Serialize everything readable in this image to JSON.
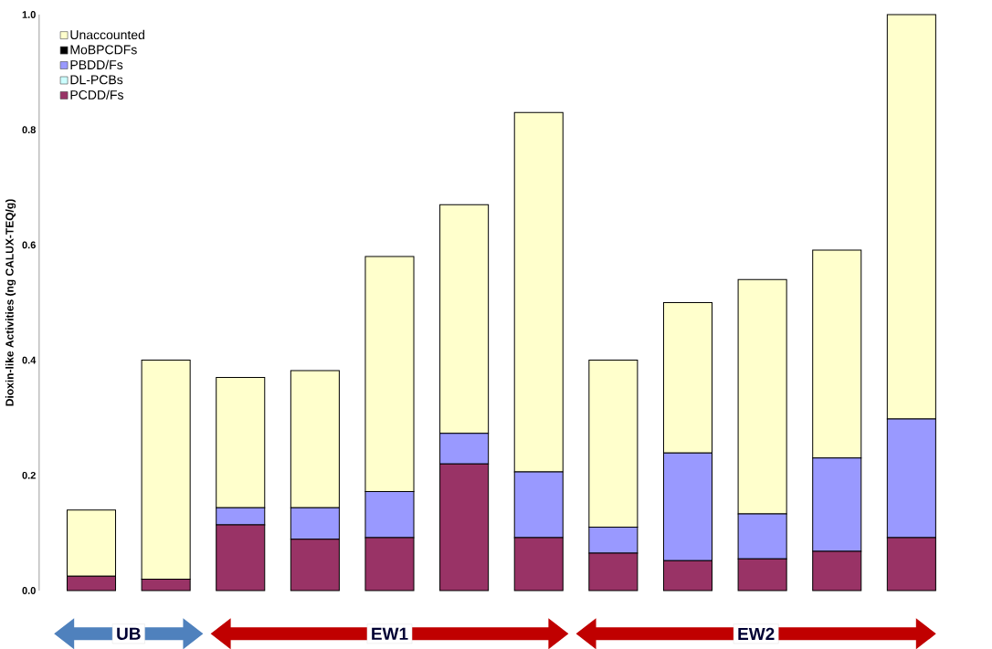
{
  "chart_data": {
    "type": "bar",
    "stacked": true,
    "ylabel": "Dioxin-like Activities (ng CALUX-TEQ/g)",
    "categories": [
      null,
      null,
      null,
      null,
      null,
      null,
      null,
      null,
      null,
      null,
      null,
      null
    ],
    "series": [
      {
        "name": "PCDD/Fs",
        "color": "#993366",
        "values": [
          0.025,
          0.02,
          0.114,
          0.089,
          0.092,
          0.22,
          0.092,
          0.065,
          0.052,
          0.055,
          0.068,
          0.092
        ]
      },
      {
        "name": "DL-PCBs",
        "color": "#ccffff",
        "values": [
          0,
          0,
          0,
          0,
          0,
          0,
          0,
          0,
          0,
          0,
          0,
          0
        ]
      },
      {
        "name": "PBDD/Fs",
        "color": "#9999ff",
        "values": [
          0,
          0,
          0.03,
          0.055,
          0.08,
          0.053,
          0.114,
          0.045,
          0.187,
          0.078,
          0.162,
          0.206
        ]
      },
      {
        "name": "MoBPCDFs",
        "color": "#000000",
        "values": [
          0,
          0,
          0,
          0,
          0,
          0,
          0,
          0,
          0,
          0,
          0,
          0
        ]
      },
      {
        "name": "Unaccounted",
        "color": "#ffffcc",
        "values": [
          0.115,
          0.38,
          0.226,
          0.238,
          0.408,
          0.397,
          0.624,
          0.29,
          0.261,
          0.407,
          0.361,
          0.702
        ]
      }
    ],
    "ylim": [
      0,
      1.0
    ],
    "yticks": [
      {
        "value": 0,
        "label": "0.0"
      },
      {
        "value": 0.2,
        "label": "0.2"
      },
      {
        "value": 0.4,
        "label": "0.4"
      },
      {
        "value": 0.6,
        "label": "0.6"
      },
      {
        "value": 0.8,
        "label": "0.8"
      },
      {
        "value": 1.0,
        "label": "1.0"
      }
    ],
    "legend": "top left",
    "grid": false,
    "annotations": [
      "UB",
      "EW1",
      "EW2"
    ]
  }
}
